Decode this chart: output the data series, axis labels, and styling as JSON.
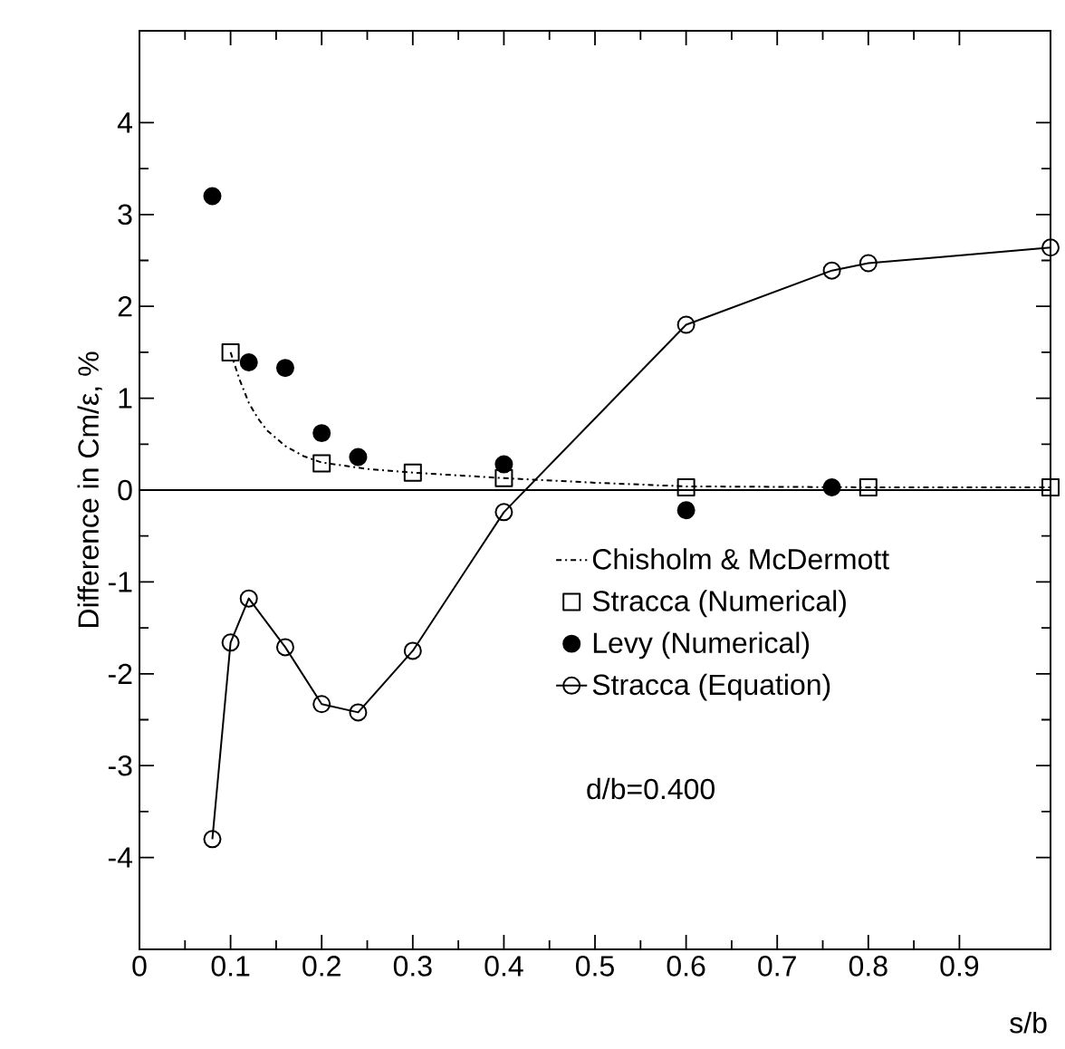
{
  "chart_data": {
    "type": "line",
    "xlabel": "s/b",
    "ylabel": "Difference in Cm/ε, %",
    "xlim": [
      0,
      1
    ],
    "ylim": [
      -5,
      5
    ],
    "xticks": [
      0,
      0.1,
      0.2,
      0.3,
      0.4,
      0.5,
      0.6,
      0.7,
      0.8,
      0.9
    ],
    "yticks": [
      -4,
      -3,
      -2,
      -1,
      0,
      1,
      2,
      3,
      4
    ],
    "grid": false,
    "legend": "right",
    "ref_lines": [
      {
        "axis": "y",
        "value": 0
      }
    ],
    "annotations": [
      "d/b=0.400"
    ],
    "series": [
      {
        "name": "Chisholm & McDermott",
        "color": "#000000",
        "line_style": "dashdot",
        "marker": "none",
        "x": [
          0.1,
          0.11,
          0.12,
          0.13,
          0.14,
          0.16,
          0.18,
          0.2,
          0.25,
          0.3,
          0.4,
          0.5,
          0.6,
          0.8,
          1.0
        ],
        "values": [
          1.5,
          1.2,
          0.95,
          0.78,
          0.65,
          0.48,
          0.37,
          0.3,
          0.23,
          0.19,
          0.13,
          0.08,
          0.04,
          0.03,
          0.03
        ]
      },
      {
        "name": "Stracca (Numerical)",
        "type": "scatter",
        "color": "#000000",
        "marker": "square",
        "x": [
          0.1,
          0.2,
          0.3,
          0.4,
          0.6,
          0.8,
          1.0
        ],
        "values": [
          1.5,
          0.29,
          0.19,
          0.13,
          0.03,
          0.03,
          0.03
        ]
      },
      {
        "name": "Levy (Numerical)",
        "type": "scatter",
        "color": "#000000",
        "marker": "circle",
        "x": [
          0.08,
          0.12,
          0.16,
          0.2,
          0.24,
          0.4,
          0.6,
          0.76
        ],
        "values": [
          3.2,
          1.39,
          1.33,
          0.62,
          0.36,
          0.28,
          -0.22,
          0.03
        ]
      },
      {
        "name": "Stracca (Equation)",
        "color": "#000000",
        "line_style": "solid",
        "marker": "circle",
        "x": [
          0.08,
          0.1,
          0.12,
          0.16,
          0.2,
          0.24,
          0.3,
          0.4,
          0.6,
          0.76,
          0.8,
          1.0
        ],
        "values": [
          -3.8,
          -1.66,
          -1.18,
          -1.71,
          -2.33,
          -2.42,
          -1.75,
          -0.24,
          1.8,
          2.39,
          2.47,
          2.64
        ]
      }
    ]
  }
}
